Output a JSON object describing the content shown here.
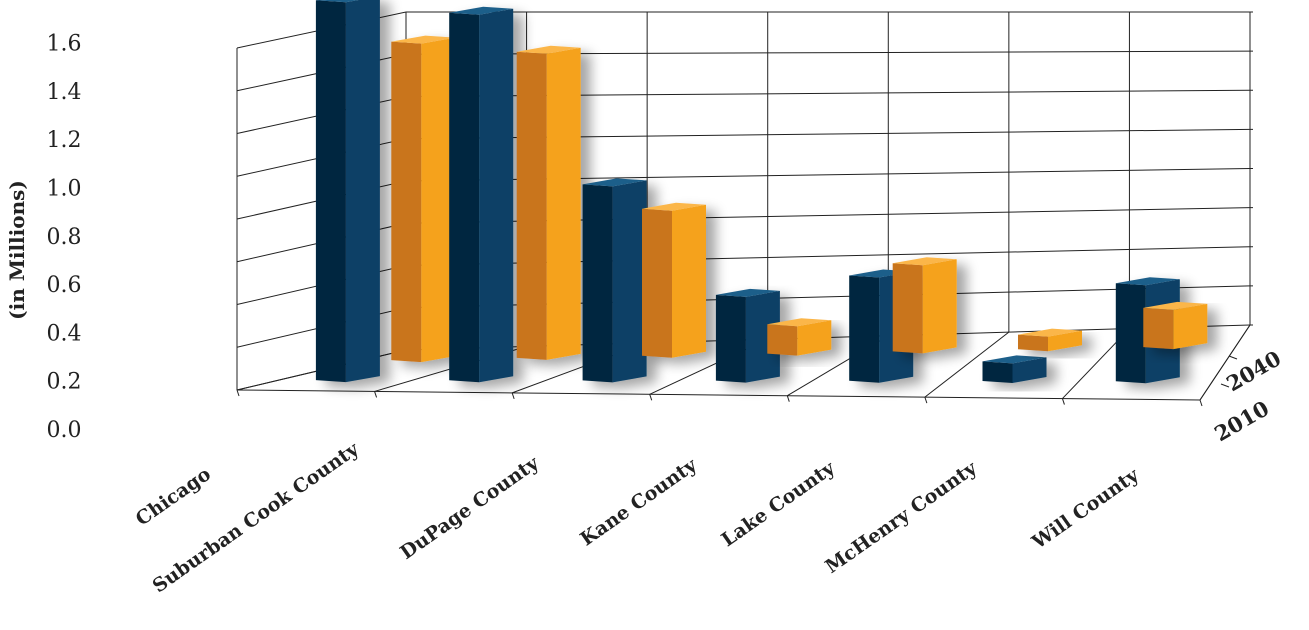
{
  "chart_data": {
    "type": "bar",
    "title": "",
    "xlabel": "",
    "ylabel": "(in Millions)",
    "ylim": [
      0,
      1.6
    ],
    "y_ticks": [
      "0.0",
      "0.2",
      "0.4",
      "0.6",
      "0.8",
      "1.0",
      "1.2",
      "1.4",
      "1.6"
    ],
    "grid": true,
    "categories": [
      "Chicago",
      "Suburban Cook County",
      "DuPage County",
      "Kane County",
      "Lake County",
      "McHenry County",
      "Will County"
    ],
    "series": [
      {
        "name": "2010",
        "color": "#f5a21c",
        "values": [
          1.3,
          1.25,
          0.6,
          0.12,
          0.36,
          0.06,
          0.16
        ]
      },
      {
        "name": "2040",
        "color": "#0a4066",
        "values": [
          1.55,
          1.5,
          0.8,
          0.35,
          0.43,
          0.08,
          0.4
        ]
      }
    ]
  }
}
